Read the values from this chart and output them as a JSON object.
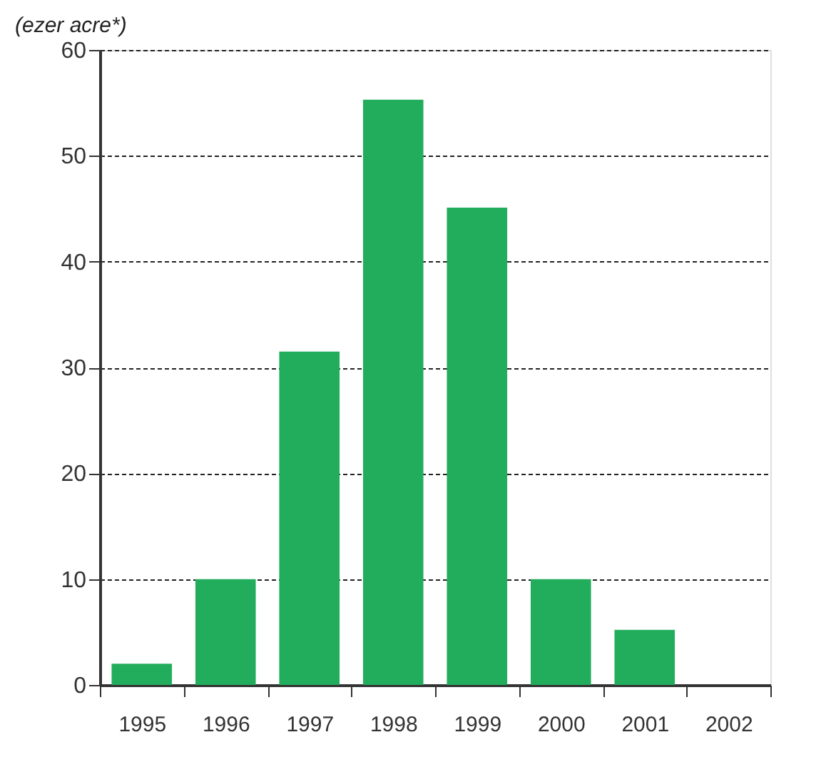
{
  "chart_data": {
    "type": "bar",
    "ylabel": "(ezer acre*)",
    "categories": [
      "1995",
      "1996",
      "1997",
      "1998",
      "1999",
      "2000",
      "2001",
      "2002"
    ],
    "values": [
      2,
      10,
      31.5,
      55.3,
      45.1,
      10,
      5.2,
      0
    ],
    "color": "#22ad5c",
    "ylim": [
      0,
      60
    ],
    "yticks": [
      0,
      10,
      20,
      30,
      40,
      50,
      60
    ],
    "grid": "y"
  }
}
